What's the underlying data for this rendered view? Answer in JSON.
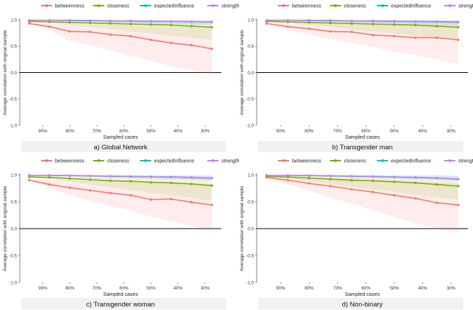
{
  "figure": {
    "type": "multi-panel stability line charts",
    "panels": [
      {
        "caption": "a) Global Network"
      },
      {
        "caption": "b) Transgender man"
      },
      {
        "caption": "c) Transgender woman"
      },
      {
        "caption": "d) Non-binary"
      }
    ]
  },
  "colors": {
    "betweenness": "#f8766d",
    "closeness": "#7cae00",
    "expectedInfluence": "#00bfc4",
    "strength": "#c77cff",
    "caption_band": "#e6e6e6"
  },
  "chart_data": [
    {
      "type": "line",
      "title": "a) Global Network",
      "xlabel": "Sampled cases",
      "ylabel": "Average correlation with original sample",
      "ylim": [
        -1.0,
        1.0
      ],
      "yticks": [
        "-1.0",
        "-0.5",
        "0.0",
        "0.5",
        "1.0"
      ],
      "x": [
        0.95,
        0.875,
        0.8,
        0.725,
        0.65,
        0.575,
        0.5,
        0.425,
        0.35,
        0.275
      ],
      "xticks": [
        "90%",
        "80%",
        "70%",
        "60%",
        "50%",
        "40%",
        "30%"
      ],
      "xtick_values": [
        0.9,
        0.8,
        0.7,
        0.6,
        0.5,
        0.4,
        0.3
      ],
      "legend": [
        "betweenness",
        "closeness",
        "expectedInfluence",
        "strength"
      ],
      "series": [
        {
          "name": "betweenness",
          "values": [
            0.93,
            0.87,
            0.78,
            0.77,
            0.72,
            0.69,
            0.62,
            0.56,
            0.52,
            0.45
          ],
          "lower": [
            0.93,
            0.8,
            0.6,
            0.52,
            0.42,
            0.32,
            0.22,
            0.12,
            0.05,
            -0.05
          ],
          "upper": [
            0.94,
            0.93,
            0.92,
            0.91,
            0.9,
            0.89,
            0.88,
            0.87,
            0.86,
            0.85
          ]
        },
        {
          "name": "closeness",
          "values": [
            0.97,
            0.96,
            0.95,
            0.94,
            0.93,
            0.92,
            0.91,
            0.9,
            0.88,
            0.86
          ],
          "lower": [
            0.97,
            0.94,
            0.9,
            0.86,
            0.82,
            0.78,
            0.74,
            0.7,
            0.66,
            0.63
          ],
          "upper": [
            0.98,
            0.98,
            0.98,
            0.97,
            0.97,
            0.97,
            0.96,
            0.96,
            0.96,
            0.95
          ]
        },
        {
          "name": "expectedInfluence",
          "values": [
            0.99,
            0.99,
            0.99,
            0.985,
            0.98,
            0.98,
            0.975,
            0.97,
            0.965,
            0.96
          ],
          "lower": [
            0.99,
            0.98,
            0.97,
            0.96,
            0.95,
            0.94,
            0.93,
            0.92,
            0.91,
            0.9
          ],
          "upper": [
            1.0,
            1.0,
            1.0,
            1.0,
            0.99,
            0.99,
            0.99,
            0.99,
            0.99,
            0.99
          ]
        },
        {
          "name": "strength",
          "values": [
            0.99,
            0.99,
            0.985,
            0.98,
            0.98,
            0.975,
            0.97,
            0.97,
            0.965,
            0.96
          ],
          "lower": [
            0.99,
            0.98,
            0.97,
            0.96,
            0.95,
            0.94,
            0.93,
            0.92,
            0.91,
            0.9
          ],
          "upper": [
            1.0,
            1.0,
            1.0,
            1.0,
            0.99,
            0.99,
            0.99,
            0.99,
            0.99,
            0.99
          ]
        }
      ]
    },
    {
      "type": "line",
      "title": "b) Transgender man",
      "xlabel": "Sampled cases",
      "ylabel": "Average correlation with original sample",
      "ylim": [
        -1.0,
        1.0
      ],
      "yticks": [
        "-1.0",
        "-0.5",
        "0.0",
        "0.5",
        "1.0"
      ],
      "x": [
        0.95,
        0.875,
        0.8,
        0.725,
        0.65,
        0.575,
        0.5,
        0.425,
        0.35,
        0.275
      ],
      "xticks": [
        "90%",
        "80%",
        "70%",
        "60%",
        "50%",
        "40%",
        "30%"
      ],
      "xtick_values": [
        0.9,
        0.8,
        0.7,
        0.6,
        0.5,
        0.4,
        0.3
      ],
      "legend": [
        "betweenness",
        "closeness",
        "expectedInfluence",
        "strength"
      ],
      "series": [
        {
          "name": "betweenness",
          "values": [
            0.93,
            0.87,
            0.83,
            0.78,
            0.77,
            0.71,
            0.69,
            0.66,
            0.66,
            0.62
          ],
          "lower": [
            0.93,
            0.82,
            0.72,
            0.63,
            0.56,
            0.48,
            0.4,
            0.33,
            0.25,
            0.16
          ],
          "upper": [
            0.94,
            0.94,
            0.93,
            0.93,
            0.93,
            0.92,
            0.92,
            0.92,
            0.91,
            0.91
          ]
        },
        {
          "name": "closeness",
          "values": [
            0.97,
            0.96,
            0.95,
            0.94,
            0.93,
            0.92,
            0.91,
            0.9,
            0.88,
            0.86
          ],
          "lower": [
            0.97,
            0.94,
            0.9,
            0.86,
            0.82,
            0.78,
            0.74,
            0.7,
            0.66,
            0.63
          ],
          "upper": [
            0.98,
            0.98,
            0.98,
            0.97,
            0.97,
            0.97,
            0.96,
            0.96,
            0.96,
            0.95
          ]
        },
        {
          "name": "expectedInfluence",
          "values": [
            0.99,
            0.99,
            0.99,
            0.985,
            0.98,
            0.98,
            0.975,
            0.97,
            0.965,
            0.96
          ],
          "lower": [
            0.99,
            0.98,
            0.97,
            0.96,
            0.95,
            0.94,
            0.93,
            0.92,
            0.91,
            0.9
          ],
          "upper": [
            1.0,
            1.0,
            1.0,
            1.0,
            0.99,
            0.99,
            0.99,
            0.99,
            0.99,
            0.99
          ]
        },
        {
          "name": "strength",
          "values": [
            0.99,
            0.99,
            0.985,
            0.98,
            0.98,
            0.975,
            0.97,
            0.965,
            0.96,
            0.955
          ],
          "lower": [
            0.99,
            0.98,
            0.97,
            0.96,
            0.95,
            0.94,
            0.93,
            0.92,
            0.91,
            0.9
          ],
          "upper": [
            1.0,
            1.0,
            1.0,
            1.0,
            0.99,
            0.99,
            0.99,
            0.99,
            0.99,
            0.99
          ]
        }
      ]
    },
    {
      "type": "line",
      "title": "c) Transgender woman",
      "xlabel": "Sampled cases",
      "ylabel": "Average correlation with original sample",
      "ylim": [
        -1.0,
        1.0
      ],
      "yticks": [
        "-1.0",
        "-0.5",
        "0.0",
        "0.5",
        "1.0"
      ],
      "x": [
        0.95,
        0.875,
        0.8,
        0.725,
        0.65,
        0.575,
        0.5,
        0.425,
        0.35,
        0.275
      ],
      "xticks": [
        "90%",
        "80%",
        "70%",
        "60%",
        "50%",
        "40%",
        "30%"
      ],
      "xtick_values": [
        0.9,
        0.8,
        0.7,
        0.6,
        0.5,
        0.4,
        0.3
      ],
      "legend": [
        "betweenness",
        "closeness",
        "expectedInfluence",
        "strength"
      ],
      "series": [
        {
          "name": "betweenness",
          "values": [
            0.9,
            0.82,
            0.76,
            0.71,
            0.66,
            0.62,
            0.54,
            0.55,
            0.49,
            0.44
          ],
          "lower": [
            0.9,
            0.75,
            0.62,
            0.52,
            0.42,
            0.33,
            0.22,
            0.14,
            0.05,
            -0.05
          ],
          "upper": [
            0.92,
            0.91,
            0.9,
            0.89,
            0.88,
            0.87,
            0.86,
            0.85,
            0.84,
            0.83
          ]
        },
        {
          "name": "closeness",
          "values": [
            0.96,
            0.95,
            0.93,
            0.91,
            0.89,
            0.88,
            0.86,
            0.85,
            0.83,
            0.8
          ],
          "lower": [
            0.96,
            0.92,
            0.87,
            0.82,
            0.77,
            0.72,
            0.67,
            0.62,
            0.57,
            0.52
          ],
          "upper": [
            0.98,
            0.98,
            0.97,
            0.97,
            0.96,
            0.96,
            0.95,
            0.95,
            0.94,
            0.94
          ]
        },
        {
          "name": "expectedInfluence",
          "values": [
            0.99,
            0.99,
            0.985,
            0.98,
            0.975,
            0.97,
            0.965,
            0.96,
            0.95,
            0.94
          ],
          "lower": [
            0.99,
            0.98,
            0.97,
            0.96,
            0.95,
            0.94,
            0.93,
            0.92,
            0.91,
            0.9
          ],
          "upper": [
            1.0,
            1.0,
            1.0,
            1.0,
            0.99,
            0.99,
            0.99,
            0.99,
            0.99,
            0.99
          ]
        },
        {
          "name": "strength",
          "values": [
            0.99,
            0.99,
            0.985,
            0.98,
            0.975,
            0.97,
            0.965,
            0.96,
            0.95,
            0.94
          ],
          "lower": [
            0.99,
            0.98,
            0.97,
            0.96,
            0.95,
            0.94,
            0.93,
            0.92,
            0.91,
            0.9
          ],
          "upper": [
            1.0,
            1.0,
            1.0,
            1.0,
            0.99,
            0.99,
            0.99,
            0.99,
            0.99,
            0.99
          ]
        }
      ]
    },
    {
      "type": "line",
      "title": "d) Non-binary",
      "xlabel": "Sampled cases",
      "ylabel": "Average correlation with original sample",
      "ylim": [
        -1.0,
        1.0
      ],
      "yticks": [
        "-1.0",
        "-0.5",
        "0.0",
        "0.5",
        "1.0"
      ],
      "x": [
        0.95,
        0.875,
        0.8,
        0.725,
        0.65,
        0.575,
        0.5,
        0.425,
        0.35,
        0.275
      ],
      "xticks": [
        "90%",
        "80%",
        "70%",
        "60%",
        "50%",
        "40%",
        "30%"
      ],
      "xtick_values": [
        0.9,
        0.8,
        0.7,
        0.6,
        0.5,
        0.4,
        0.3
      ],
      "legend": [
        "betweenness",
        "closeness",
        "expectedInfluence",
        "strength"
      ],
      "series": [
        {
          "name": "betweenness",
          "values": [
            0.95,
            0.9,
            0.84,
            0.79,
            0.73,
            0.68,
            0.62,
            0.56,
            0.48,
            0.44
          ],
          "lower": [
            0.95,
            0.82,
            0.7,
            0.58,
            0.46,
            0.34,
            0.22,
            0.1,
            0.0,
            -0.08
          ],
          "upper": [
            0.96,
            0.95,
            0.94,
            0.93,
            0.92,
            0.91,
            0.9,
            0.88,
            0.86,
            0.84
          ]
        },
        {
          "name": "closeness",
          "values": [
            0.97,
            0.96,
            0.94,
            0.92,
            0.9,
            0.89,
            0.87,
            0.85,
            0.82,
            0.79
          ],
          "lower": [
            0.97,
            0.93,
            0.88,
            0.83,
            0.78,
            0.73,
            0.68,
            0.63,
            0.58,
            0.53
          ],
          "upper": [
            0.98,
            0.98,
            0.97,
            0.97,
            0.96,
            0.96,
            0.95,
            0.95,
            0.94,
            0.94
          ]
        },
        {
          "name": "expectedInfluence",
          "values": [
            0.99,
            0.99,
            0.985,
            0.98,
            0.975,
            0.97,
            0.96,
            0.95,
            0.94,
            0.92
          ],
          "lower": [
            0.99,
            0.98,
            0.97,
            0.96,
            0.95,
            0.94,
            0.93,
            0.92,
            0.91,
            0.89
          ],
          "upper": [
            1.0,
            1.0,
            1.0,
            1.0,
            0.99,
            0.99,
            0.99,
            0.99,
            0.99,
            0.98
          ]
        },
        {
          "name": "strength",
          "values": [
            0.99,
            0.99,
            0.985,
            0.98,
            0.975,
            0.97,
            0.96,
            0.95,
            0.94,
            0.92
          ],
          "lower": [
            0.99,
            0.98,
            0.97,
            0.96,
            0.95,
            0.94,
            0.93,
            0.92,
            0.91,
            0.89
          ],
          "upper": [
            1.0,
            1.0,
            1.0,
            1.0,
            0.99,
            0.99,
            0.99,
            0.99,
            0.99,
            0.98
          ]
        }
      ]
    }
  ]
}
